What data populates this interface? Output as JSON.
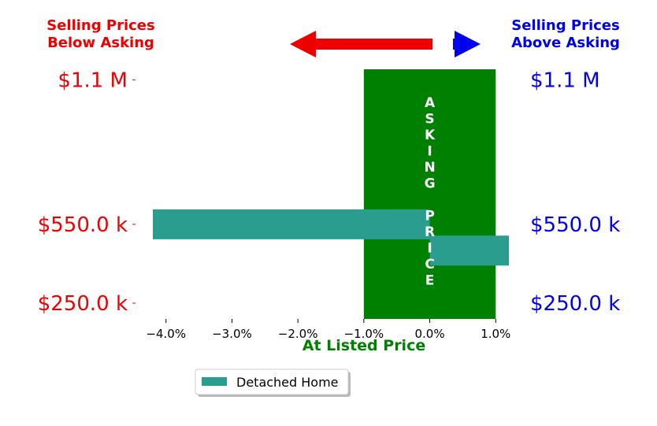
{
  "header": {
    "left_title_line1": "Selling Prices",
    "left_title_line2": "Below Asking",
    "right_title_line1": "Selling Prices",
    "right_title_line2": "Above Asking"
  },
  "colors": {
    "below": "#ee0000",
    "above": "#0000ee",
    "asking_box": "#008000",
    "bar": "#2a9d8f",
    "xlabel": "#008000"
  },
  "chart_data": {
    "type": "bar",
    "orientation": "horizontal",
    "xlabel": "At Listed Price",
    "xlim": [
      -4.2,
      1.2
    ],
    "x_ticks": [
      -4.0,
      -3.0,
      -2.0,
      -1.0,
      0.0,
      1.0
    ],
    "x_tick_labels": [
      "−4.0%",
      "−3.0%",
      "−2.0%",
      "−1.0%",
      "0.0%",
      "1.0%"
    ],
    "ylim": [
      190000,
      1140000
    ],
    "y_ticks": [
      250000,
      550000,
      1100000
    ],
    "y_tick_labels": [
      "$250.0 k",
      "$550.0 k",
      "$1.1 M"
    ],
    "series": [
      {
        "name": "Detached Home",
        "bars": [
          {
            "price": 550000,
            "value": -4.2
          },
          {
            "price": 450000,
            "value": 1.2
          }
        ]
      }
    ],
    "asking_band": {
      "from": -1.0,
      "to": 1.0,
      "label_top": "ASKING",
      "label_bottom": "PRICE"
    },
    "legend_position": "bottom-center",
    "grid": false
  }
}
